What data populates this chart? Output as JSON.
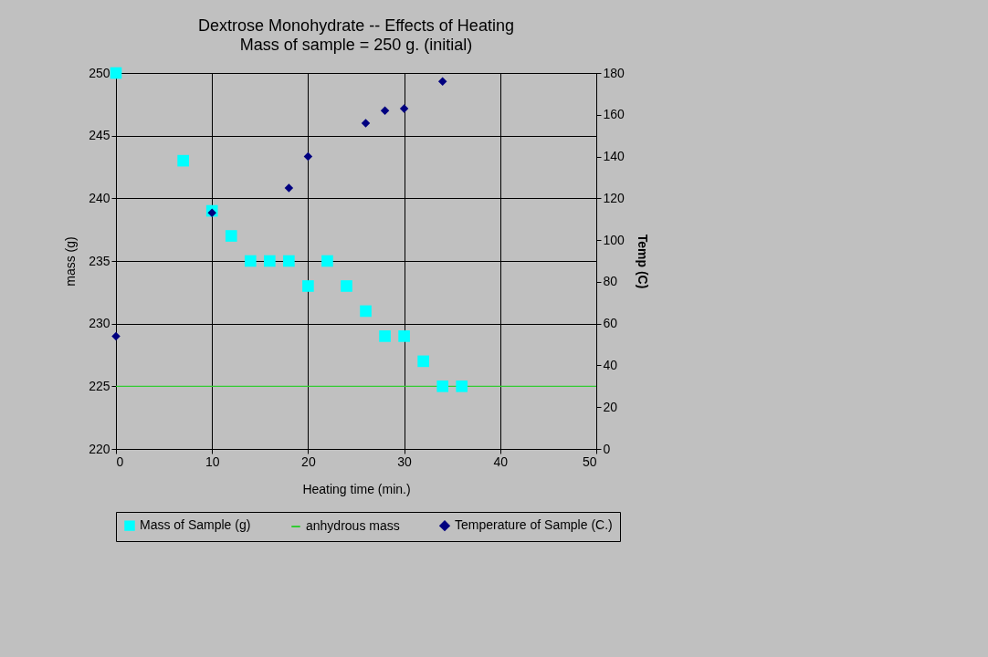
{
  "chart_data": {
    "type": "scatter",
    "title": "Dextrose Monohydrate -- Effects of Heating",
    "subtitle": "Mass of sample = 250 g. (initial)",
    "xlabel": "Heating time (min.)",
    "ylabel": "mass (g)",
    "y2label": "Temp (C)",
    "xlim": [
      0,
      50
    ],
    "xticks": [
      0,
      10,
      20,
      30,
      40,
      50
    ],
    "ylim": [
      220,
      250
    ],
    "yticks": [
      220,
      225,
      230,
      235,
      240,
      245,
      250
    ],
    "y2lim": [
      0,
      180
    ],
    "y2ticks": [
      0,
      20,
      40,
      60,
      80,
      100,
      120,
      140,
      160,
      180
    ],
    "grid": true,
    "legend": "bottom",
    "series": [
      {
        "name": "Mass of Sample (g)",
        "marker": "square",
        "color": "#00ffff",
        "x": [
          0,
          7,
          10,
          12,
          14,
          16,
          18,
          20,
          22,
          24,
          26,
          28,
          30,
          32,
          34,
          36
        ],
        "values": [
          250,
          243,
          239,
          237,
          235,
          235,
          235,
          233,
          235,
          233,
          231,
          229,
          229,
          227,
          225,
          225
        ]
      },
      {
        "name": "anhydrous mass",
        "type": "line",
        "marker": "none",
        "color": "#33cc33",
        "x": [
          0,
          50
        ],
        "values": [
          225,
          225
        ]
      },
      {
        "name": "Temperature of Sample (C.)",
        "marker": "diamond",
        "axis": "y2",
        "color": "#000080",
        "x": [
          0,
          10,
          18,
          20,
          26,
          28,
          30,
          34
        ],
        "values": [
          54,
          113,
          125,
          140,
          156,
          162,
          163,
          176
        ]
      }
    ]
  }
}
